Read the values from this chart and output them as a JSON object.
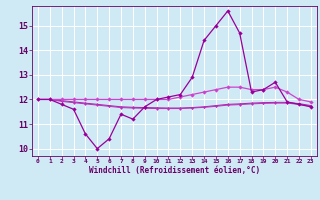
{
  "x": [
    0,
    1,
    2,
    3,
    4,
    5,
    6,
    7,
    8,
    9,
    10,
    11,
    12,
    13,
    14,
    15,
    16,
    17,
    18,
    19,
    20,
    21,
    22,
    23
  ],
  "line1": [
    12.0,
    12.0,
    11.8,
    11.6,
    10.6,
    10.0,
    10.4,
    11.4,
    11.2,
    11.7,
    12.0,
    12.1,
    12.2,
    12.9,
    14.4,
    15.0,
    15.6,
    14.7,
    12.3,
    12.4,
    12.7,
    11.9,
    11.8,
    11.7
  ],
  "line2": [
    12.0,
    12.0,
    12.0,
    12.0,
    12.0,
    12.0,
    12.0,
    12.0,
    12.0,
    12.0,
    12.0,
    12.0,
    12.1,
    12.2,
    12.3,
    12.4,
    12.5,
    12.5,
    12.4,
    12.4,
    12.5,
    12.3,
    12.0,
    11.9
  ],
  "line3": [
    12.0,
    12.0,
    11.95,
    11.9,
    11.85,
    11.8,
    11.75,
    11.7,
    11.68,
    11.67,
    11.66,
    11.65,
    11.65,
    11.67,
    11.7,
    11.75,
    11.8,
    11.82,
    11.85,
    11.87,
    11.88,
    11.88,
    11.83,
    11.75
  ],
  "line4": [
    12.0,
    12.0,
    11.92,
    11.87,
    11.82,
    11.77,
    11.72,
    11.67,
    11.65,
    11.64,
    11.63,
    11.63,
    11.63,
    11.65,
    11.68,
    11.72,
    11.77,
    11.79,
    11.82,
    11.84,
    11.85,
    11.85,
    11.8,
    11.72
  ],
  "line_color1": "#990099",
  "line_color2": "#cc44cc",
  "line_color3": "#aa22aa",
  "line_color4": "#bb33bb",
  "bg_color": "#d0eaf5",
  "grid_color": "#ffffff",
  "axis_color": "#660066",
  "xlabel": "Windchill (Refroidissement éolien,°C)",
  "xlim": [
    -0.5,
    23.5
  ],
  "ylim": [
    9.7,
    15.8
  ],
  "yticks": [
    10,
    11,
    12,
    13,
    14,
    15
  ],
  "xticks": [
    0,
    1,
    2,
    3,
    4,
    5,
    6,
    7,
    8,
    9,
    10,
    11,
    12,
    13,
    14,
    15,
    16,
    17,
    18,
    19,
    20,
    21,
    22,
    23
  ]
}
